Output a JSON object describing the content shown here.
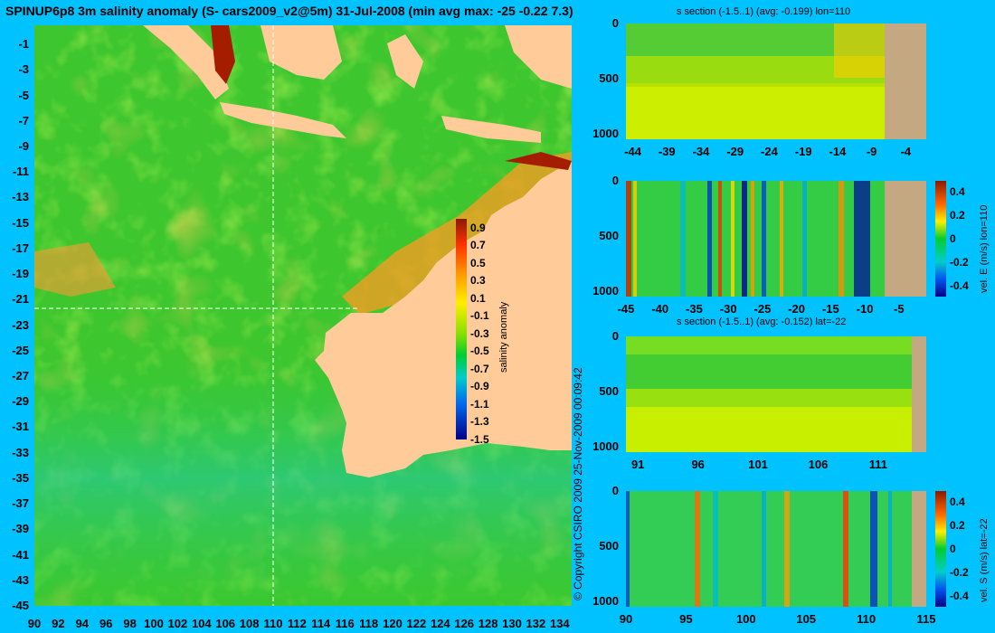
{
  "title": "SPINUP6p8 3m salinity anomaly (S- cars2009_v2@5m) 31-Jul-2008 (min avg max: -25 -0.22 7.3)",
  "copyright": "© Copyright CSIRO 2009   25-Nov-2009 00:09:42",
  "colors": {
    "background": "#00c2ff",
    "land": "#ffcc99",
    "section_land": "#c4a882"
  },
  "chart_data": [
    {
      "type": "heatmap",
      "name": "map",
      "xticks": [
        "90",
        "92",
        "94",
        "96",
        "98",
        "100",
        "102",
        "104",
        "106",
        "108",
        "110",
        "112",
        "114",
        "116",
        "118",
        "120",
        "122",
        "124",
        "126",
        "128",
        "130",
        "132",
        "134"
      ],
      "yticks": [
        "-1",
        "-3",
        "-5",
        "-7",
        "-9",
        "-11",
        "-13",
        "-15",
        "-17",
        "-19",
        "-21",
        "-23",
        "-25",
        "-27",
        "-29",
        "-31",
        "-33",
        "-35",
        "-37",
        "-39",
        "-41",
        "-43",
        "-45"
      ],
      "xlim": [
        90,
        135
      ],
      "ylim": [
        -45,
        0.5
      ],
      "section_lon": 110,
      "section_lat": -22
    },
    {
      "type": "heatmap",
      "name": "colorbar",
      "label": "salinity anomaly",
      "ticks": [
        "0.9",
        "0.7",
        "0.5",
        "0.3",
        "0.1",
        "-0.1",
        "-0.3",
        "-0.5",
        "-0.7",
        "-0.9",
        "-1.1",
        "-1.3",
        "-1.5"
      ],
      "range": [
        -1.5,
        1.0
      ]
    },
    {
      "type": "heatmap",
      "name": "s-section-lon110",
      "title": "s section (-1.5..1) (avg: -0.199) lon=110",
      "xticks": [
        "-44",
        "-39",
        "-34",
        "-29",
        "-24",
        "-19",
        "-14",
        "-9",
        "-4"
      ],
      "yticks": [
        "0",
        "500",
        "1000"
      ],
      "xlim": [
        -45,
        -1
      ],
      "ylim": [
        1050,
        0
      ]
    },
    {
      "type": "heatmap",
      "name": "vel-e-section-lon110",
      "title": "",
      "xticks": [
        "-45",
        "-40",
        "-35",
        "-30",
        "-25",
        "-20",
        "-15",
        "-10",
        "-5"
      ],
      "yticks": [
        "0",
        "500",
        "1000"
      ],
      "xlim": [
        -45,
        -1
      ],
      "ylim": [
        1050,
        0
      ],
      "colorbar_label": "vel. E (m/s) lon=110",
      "colorbar_ticks": [
        "0.4",
        "0.2",
        "0",
        "-0.2",
        "-0.4"
      ]
    },
    {
      "type": "heatmap",
      "name": "s-section-lat-22",
      "title": "s section (-1.5..1) (avg: -0.152) lat=-22",
      "xticks": [
        "91",
        "96",
        "101",
        "106",
        "111"
      ],
      "yticks": [
        "0",
        "500",
        "1000"
      ],
      "xlim": [
        90,
        115
      ],
      "ylim": [
        1050,
        0
      ]
    },
    {
      "type": "heatmap",
      "name": "vel-s-section-lat-22",
      "title": "",
      "xticks": [
        "90",
        "95",
        "100",
        "105",
        "110",
        "115"
      ],
      "yticks": [
        "0",
        "500",
        "1000"
      ],
      "xlim": [
        90,
        115
      ],
      "ylim": [
        1050,
        0
      ],
      "colorbar_label": "vel. S (m/s) lat=-22",
      "colorbar_ticks": [
        "0.4",
        "0.2",
        "0",
        "-0.2",
        "-0.4"
      ]
    }
  ]
}
